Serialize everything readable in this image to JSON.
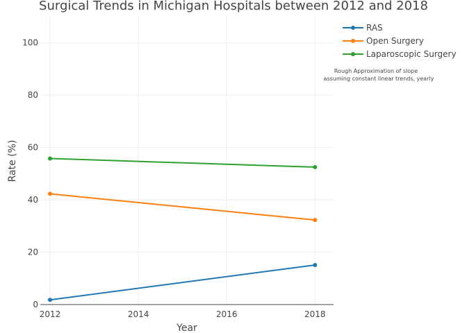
{
  "chart_data": {
    "type": "line",
    "title": "Surgical Trends in Michigan Hospitals between 2012 and 2018",
    "xlabel": "Year",
    "ylabel": "Rate (%)",
    "xlim": [
      2011.78,
      2018.42
    ],
    "ylim": [
      0,
      110
    ],
    "x_ticks": [
      2012,
      2014,
      2016,
      2018
    ],
    "y_ticks": [
      0,
      20,
      40,
      60,
      80,
      100
    ],
    "grid": true,
    "legend_position": "top-right",
    "series": [
      {
        "name": "RAS",
        "color": "#1f77b4",
        "x": [
          2012,
          2018
        ],
        "y": [
          1.8,
          15.1
        ]
      },
      {
        "name": "Open Surgery",
        "color": "#ff7f0e",
        "x": [
          2012,
          2018
        ],
        "y": [
          42.3,
          32.3
        ]
      },
      {
        "name": "Laparoscopic Surgery",
        "color": "#2ca02c",
        "x": [
          2012,
          2018
        ],
        "y": [
          55.8,
          52.5
        ]
      }
    ],
    "annotation": {
      "line1": "Rough Approximation of slope",
      "line2": "assuming constant linear trends, yearly"
    }
  }
}
